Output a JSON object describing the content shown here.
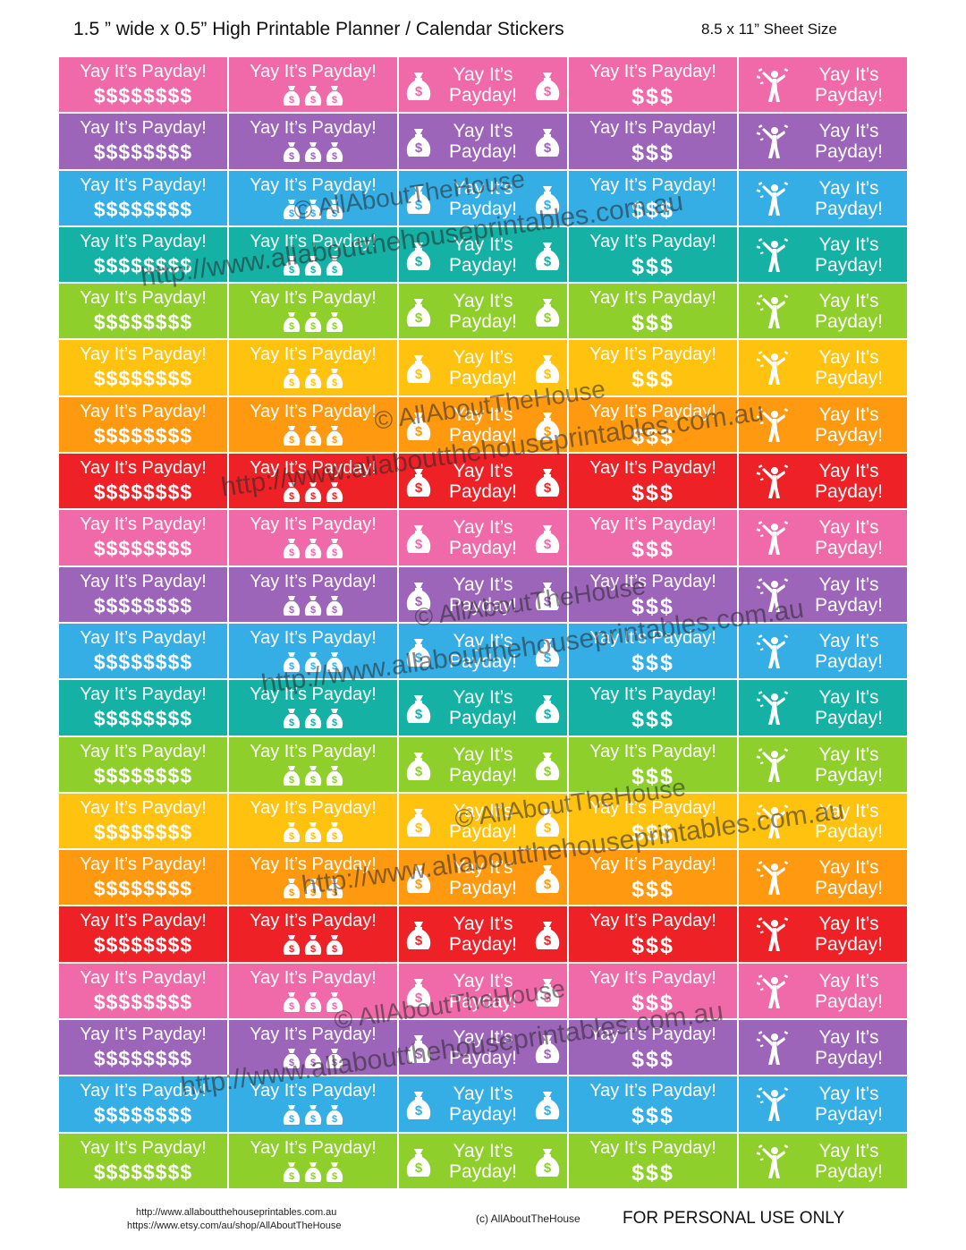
{
  "header": {
    "title": "1.5 ” wide x 0.5” High Printable Planner / Calendar Stickers",
    "sheet_size": "8.5 x 11” Sheet Size"
  },
  "sticker_text": {
    "full": "Yay It’s Payday!",
    "line1": "Yay It’s",
    "line2": "Payday!",
    "dollars_8": "$$$$$$$$",
    "dollars_3": "$$$"
  },
  "row_colors": [
    "#f06aa9",
    "#9c65b9",
    "#35aee6",
    "#14b1a4",
    "#8fcf2c",
    "#ffc20e",
    "#ff9a10",
    "#ee2226",
    "#f06aa9",
    "#9c65b9",
    "#35aee6",
    "#14b1a4",
    "#8fcf2c",
    "#ffc20e",
    "#ff9a10",
    "#ee2226",
    "#f06aa9",
    "#9c65b9",
    "#35aee6",
    "#8fcf2c"
  ],
  "watermark": {
    "line1": "© AllAboutTheHouse",
    "line2": "http://www.allaboutthehouseprintables.com.au"
  },
  "footer": {
    "url1": "http://www.allaboutthehouseprintables.com.au",
    "url2": "https://www.etsy.com/au/shop/AllAboutTheHouse",
    "copyright": "(c) AllAboutTheHouse",
    "personal": "FOR PERSONAL USE ONLY"
  },
  "icons": {
    "money_bag": "money-bag-icon",
    "celebrating_person": "celebrating-person-icon"
  }
}
